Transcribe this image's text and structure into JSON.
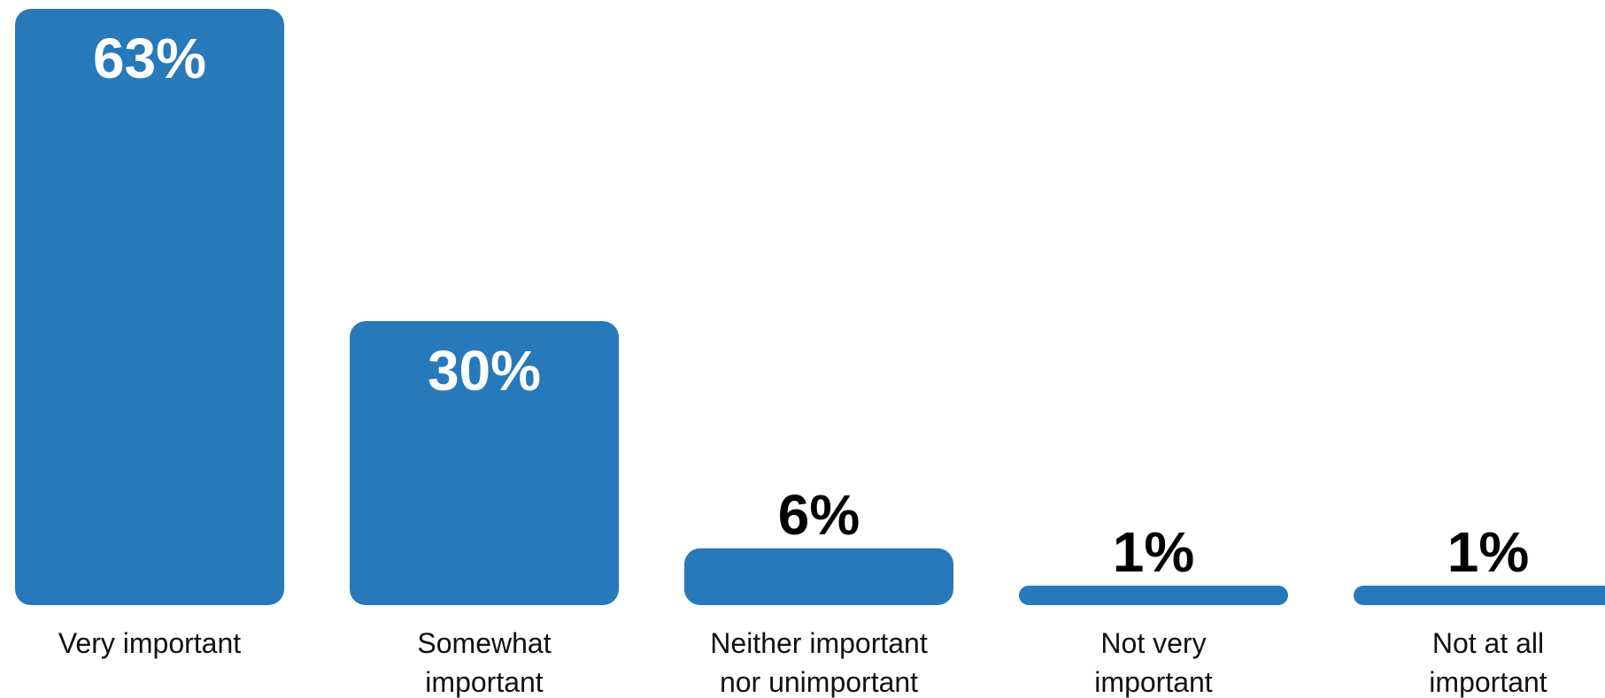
{
  "chart_data": {
    "type": "bar",
    "categories": [
      [
        "Very important"
      ],
      [
        "Somewhat",
        "important"
      ],
      [
        "Neither important",
        "nor unimportant"
      ],
      [
        "Not very",
        "important"
      ],
      [
        "Not at all",
        "important"
      ]
    ],
    "values": [
      63,
      30,
      6,
      1,
      1
    ],
    "value_labels": [
      "63%",
      "30%",
      "6%",
      "1%",
      "1%"
    ],
    "unit": "%",
    "title": "",
    "xlabel": "",
    "ylabel": "",
    "ylim": [
      0,
      63
    ],
    "grid": false,
    "legend": "none",
    "colors": {
      "bar": "#2779BA",
      "label_inside": "#ffffff",
      "label_outside": "#000000",
      "category_text": "#111111"
    }
  }
}
